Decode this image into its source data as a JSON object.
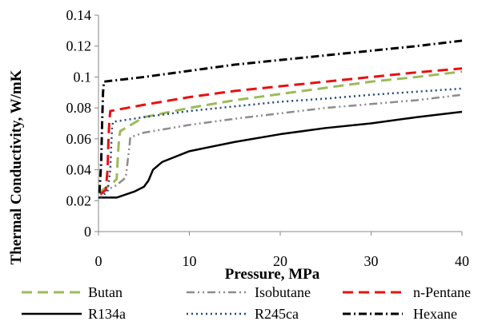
{
  "chart_data": {
    "type": "line",
    "xlabel": "Pressure, MPa",
    "ylabel": "Thermal Conductivity, W/mK",
    "xlim": [
      0,
      40
    ],
    "ylim": [
      0,
      0.14
    ],
    "x_ticks": [
      "0",
      "10",
      "20",
      "30",
      "40"
    ],
    "y_ticks": [
      "0",
      "0.02",
      "0.04",
      "0.06",
      "0.08",
      "0.1",
      "0.12",
      "0.14"
    ],
    "grid": false,
    "legend_position": "bottom",
    "series": [
      {
        "name": "Butan",
        "color": "#9BBB59",
        "dash": "long-dash",
        "points": [
          [
            0.2,
            0.026
          ],
          [
            1.5,
            0.031
          ],
          [
            2.0,
            0.034
          ],
          [
            2.1,
            0.045
          ],
          [
            2.2,
            0.055
          ],
          [
            2.3,
            0.062
          ],
          [
            2.4,
            0.065
          ],
          [
            5,
            0.074
          ],
          [
            10,
            0.08
          ],
          [
            15,
            0.085
          ],
          [
            20,
            0.089
          ],
          [
            25,
            0.093
          ],
          [
            30,
            0.097
          ],
          [
            35,
            0.1
          ],
          [
            40,
            0.1035
          ]
        ]
      },
      {
        "name": "Isobutane",
        "color": "#8C8C8C",
        "dash": "dash-dot-dot",
        "points": [
          [
            0.2,
            0.025
          ],
          [
            2.0,
            0.03
          ],
          [
            3.0,
            0.035
          ],
          [
            3.2,
            0.045
          ],
          [
            3.4,
            0.055
          ],
          [
            3.5,
            0.061
          ],
          [
            5,
            0.064
          ],
          [
            10,
            0.069
          ],
          [
            15,
            0.073
          ],
          [
            20,
            0.0765
          ],
          [
            25,
            0.08
          ],
          [
            30,
            0.0825
          ],
          [
            35,
            0.085
          ],
          [
            40,
            0.0885
          ]
        ]
      },
      {
        "name": "n-Pentane",
        "color": "#E81010",
        "dash": "long-dash",
        "points": [
          [
            0.2,
            0.024
          ],
          [
            0.8,
            0.027
          ],
          [
            1.0,
            0.04
          ],
          [
            1.1,
            0.06
          ],
          [
            1.2,
            0.072
          ],
          [
            1.3,
            0.078
          ],
          [
            5,
            0.082
          ],
          [
            10,
            0.087
          ],
          [
            15,
            0.091
          ],
          [
            20,
            0.094
          ],
          [
            25,
            0.097
          ],
          [
            30,
            0.1
          ],
          [
            35,
            0.103
          ],
          [
            40,
            0.1055
          ]
        ]
      },
      {
        "name": "R134a",
        "color": "#000000",
        "dash": "solid",
        "points": [
          [
            0,
            0.022
          ],
          [
            2,
            0.022
          ],
          [
            3,
            0.024
          ],
          [
            4,
            0.026
          ],
          [
            5,
            0.029
          ],
          [
            5.5,
            0.033
          ],
          [
            6,
            0.04
          ],
          [
            7,
            0.045
          ],
          [
            10,
            0.052
          ],
          [
            15,
            0.058
          ],
          [
            20,
            0.063
          ],
          [
            25,
            0.067
          ],
          [
            30,
            0.07
          ],
          [
            35,
            0.074
          ],
          [
            40,
            0.0775
          ]
        ]
      },
      {
        "name": "R245ca",
        "color": "#1F497D",
        "dash": "dotted",
        "points": [
          [
            0.2,
            0.022
          ],
          [
            1.0,
            0.026
          ],
          [
            1.3,
            0.04
          ],
          [
            1.4,
            0.055
          ],
          [
            1.5,
            0.068
          ],
          [
            1.6,
            0.071
          ],
          [
            5,
            0.074
          ],
          [
            10,
            0.078
          ],
          [
            15,
            0.081
          ],
          [
            20,
            0.084
          ],
          [
            25,
            0.086
          ],
          [
            30,
            0.0885
          ],
          [
            35,
            0.0905
          ],
          [
            40,
            0.0925
          ]
        ]
      },
      {
        "name": "Hexane",
        "color": "#000000",
        "dash": "dash-dot",
        "points": [
          [
            0.1,
            0.025
          ],
          [
            0.3,
            0.045
          ],
          [
            0.4,
            0.07
          ],
          [
            0.5,
            0.09
          ],
          [
            0.6,
            0.097
          ],
          [
            5,
            0.1
          ],
          [
            10,
            0.104
          ],
          [
            15,
            0.108
          ],
          [
            20,
            0.111
          ],
          [
            25,
            0.114
          ],
          [
            30,
            0.117
          ],
          [
            35,
            0.12
          ],
          [
            40,
            0.1235
          ]
        ]
      }
    ]
  }
}
